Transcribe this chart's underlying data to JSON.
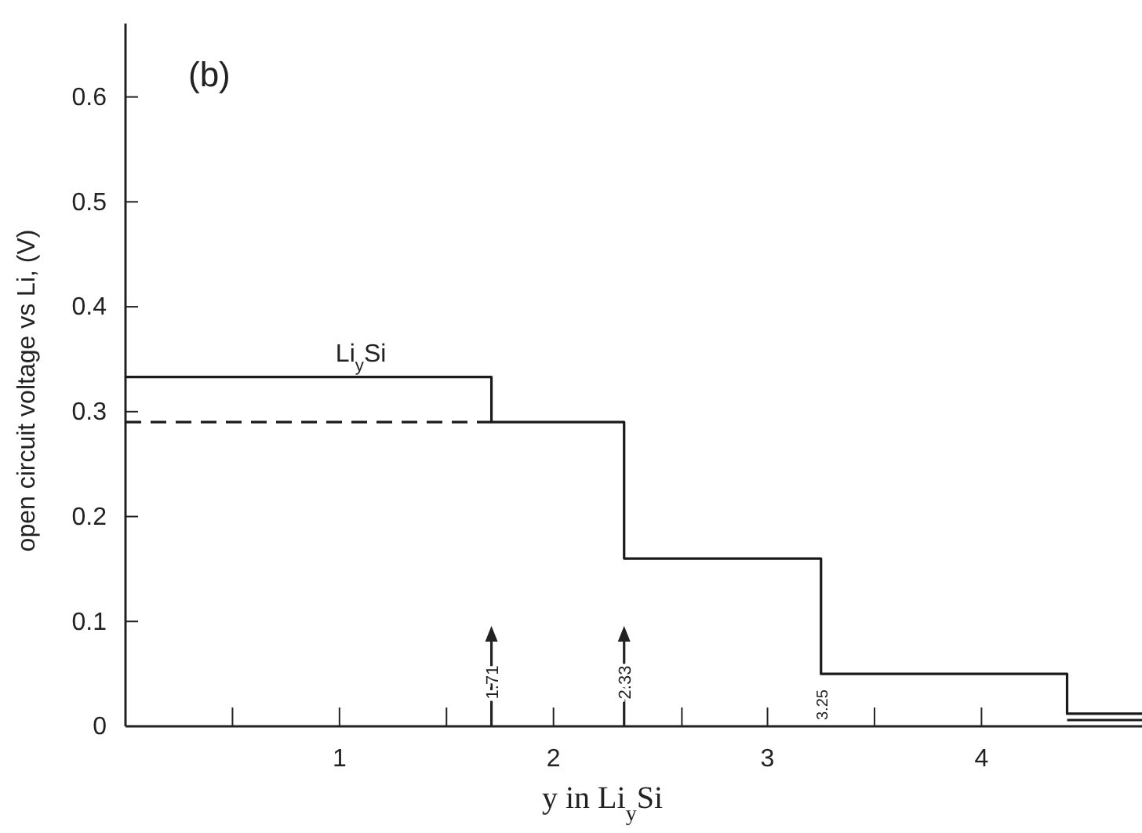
{
  "chart_data": {
    "type": "line",
    "xlabel": "y in Li$_{y}$Si",
    "ylabel": "open circuit voltage vs Li, (V)",
    "xlim": [
      0,
      4.75
    ],
    "ylim": [
      0,
      0.67
    ],
    "xticks": [
      {
        "value": 0.5,
        "label": null
      },
      1,
      {
        "value": 1.5,
        "label": null
      },
      2,
      {
        "value": 2.6,
        "label": null
      },
      3,
      {
        "value": 3.5,
        "label": null
      },
      4
    ],
    "yticks": [
      0,
      0.1,
      0.2,
      0.3,
      0.4,
      0.5,
      0.6
    ],
    "series": [
      {
        "type": "step",
        "color": "#1a1a1a",
        "x": [
          0,
          1.71,
          2.33,
          3.25,
          4.4,
          4.75
        ],
        "values": [
          0.333,
          0.29,
          0.16,
          0.05,
          0.012,
          0.012
        ]
      },
      {
        "color": "#1a1a1a",
        "x": [
          4.4,
          4.75
        ],
        "values": [
          0.006,
          0.006
        ]
      },
      {
        "color": "#1a1a1a",
        "line_style": "dashed",
        "x": [
          0,
          1.71
        ],
        "values": [
          0.29,
          0.29
        ]
      }
    ],
    "ref_lines": [
      {
        "axis": "x",
        "value": 1.71,
        "label": "1.71"
      },
      {
        "axis": "x",
        "value": 2.33,
        "label": "2.33"
      }
    ],
    "annotations": [
      "(b)",
      {
        "text": "Li$_{y}$Si",
        "x": 1.1,
        "y": 0.333
      },
      {
        "text": "3.25",
        "x": 3.25,
        "y": 0.05
      }
    ],
    "grid": false,
    "marker": "none"
  }
}
